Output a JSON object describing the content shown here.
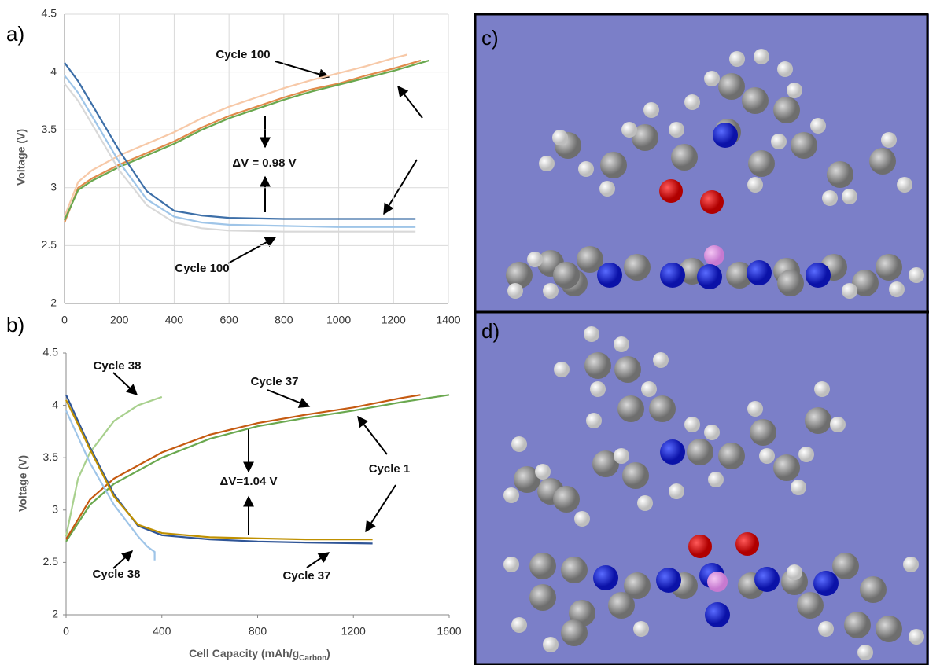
{
  "chart_data": [
    {
      "type": "line",
      "panel_label": "a)",
      "y_label": "Voltage (V)",
      "xlim": [
        0,
        1400
      ],
      "xticks": [
        0,
        200,
        400,
        600,
        800,
        1000,
        1200,
        1400
      ],
      "ylim": [
        2,
        4.5
      ],
      "yticks": [
        2,
        2.5,
        3,
        3.5,
        4,
        4.5
      ],
      "grid": true,
      "series": [
        {
          "color": "#f7c9a8",
          "x": [
            0,
            50,
            100,
            200,
            300,
            400,
            500,
            600,
            700,
            800,
            900,
            1000,
            1100,
            1200,
            1250
          ],
          "values": [
            2.75,
            3.05,
            3.15,
            3.28,
            3.38,
            3.48,
            3.6,
            3.7,
            3.78,
            3.86,
            3.93,
            3.99,
            4.05,
            4.12,
            4.15
          ]
        },
        {
          "color": "#e08a4a",
          "x": [
            0,
            50,
            100,
            200,
            300,
            400,
            500,
            600,
            700,
            800,
            900,
            1000,
            1100,
            1200,
            1300
          ],
          "values": [
            2.7,
            3.0,
            3.08,
            3.2,
            3.3,
            3.4,
            3.52,
            3.62,
            3.7,
            3.78,
            3.85,
            3.9,
            3.97,
            4.03,
            4.1
          ]
        },
        {
          "color": "#6aa84f",
          "x": [
            0,
            50,
            100,
            200,
            300,
            400,
            500,
            600,
            700,
            800,
            900,
            1000,
            1100,
            1200,
            1330
          ],
          "values": [
            2.72,
            2.98,
            3.06,
            3.18,
            3.28,
            3.38,
            3.5,
            3.6,
            3.68,
            3.76,
            3.83,
            3.89,
            3.95,
            4.01,
            4.1
          ]
        },
        {
          "color": "#d9d9d9",
          "x": [
            0,
            50,
            100,
            200,
            300,
            400,
            500,
            600,
            800,
            1000,
            1280
          ],
          "values": [
            3.9,
            3.75,
            3.55,
            3.15,
            2.85,
            2.7,
            2.65,
            2.63,
            2.62,
            2.62,
            2.62
          ]
        },
        {
          "color": "#9fc5e8",
          "x": [
            0,
            50,
            100,
            200,
            300,
            400,
            500,
            600,
            800,
            1000,
            1280
          ],
          "values": [
            3.97,
            3.82,
            3.62,
            3.22,
            2.9,
            2.75,
            2.7,
            2.68,
            2.67,
            2.66,
            2.66
          ]
        },
        {
          "color": "#3d6fa8",
          "x": [
            0,
            50,
            100,
            200,
            300,
            400,
            500,
            600,
            800,
            1000,
            1280
          ],
          "values": [
            4.08,
            3.92,
            3.72,
            3.32,
            2.97,
            2.8,
            2.76,
            2.74,
            2.73,
            2.73,
            2.73
          ]
        }
      ],
      "annotations": [
        {
          "text": "Cycle 100"
        },
        {
          "text": "ΔV = 0.98 V"
        },
        {
          "text": "Cycle 100"
        }
      ]
    },
    {
      "type": "line",
      "panel_label": "b)",
      "y_label": "Voltage (V)",
      "x_label": "Cell Capacity (mAh/g",
      "x_label_sub": "Carbon",
      "x_label_end": ")",
      "xlim": [
        0,
        1600
      ],
      "xticks": [
        0,
        400,
        800,
        1200,
        1600
      ],
      "ylim": [
        2,
        4.5
      ],
      "yticks": [
        2,
        2.5,
        3,
        3.5,
        4,
        4.5
      ],
      "grid": false,
      "series": [
        {
          "color": "#a8d08d",
          "x": [
            0,
            50,
            100,
            200,
            300,
            400
          ],
          "values": [
            2.75,
            3.3,
            3.55,
            3.85,
            4.0,
            4.08
          ]
        },
        {
          "color": "#6aa84f",
          "x": [
            0,
            100,
            200,
            400,
            600,
            800,
            1000,
            1200,
            1400,
            1600
          ],
          "values": [
            2.7,
            3.05,
            3.25,
            3.5,
            3.68,
            3.8,
            3.88,
            3.95,
            4.03,
            4.1
          ]
        },
        {
          "color": "#c55a11",
          "x": [
            0,
            100,
            200,
            400,
            600,
            800,
            1000,
            1200,
            1400,
            1480
          ],
          "values": [
            2.72,
            3.1,
            3.3,
            3.55,
            3.72,
            3.83,
            3.91,
            3.98,
            4.07,
            4.1
          ]
        },
        {
          "color": "#9fc5e8",
          "x": [
            0,
            50,
            100,
            200,
            300,
            340,
            370,
            370
          ],
          "values": [
            3.95,
            3.7,
            3.45,
            3.05,
            2.75,
            2.65,
            2.6,
            2.52
          ]
        },
        {
          "color": "#2f5597",
          "x": [
            0,
            50,
            100,
            200,
            300,
            400,
            600,
            800,
            1000,
            1280
          ],
          "values": [
            4.1,
            3.85,
            3.6,
            3.15,
            2.85,
            2.76,
            2.72,
            2.7,
            2.69,
            2.68
          ]
        },
        {
          "color": "#bf9000",
          "x": [
            0,
            50,
            100,
            200,
            300,
            400,
            600,
            800,
            1000,
            1280
          ],
          "values": [
            4.05,
            3.82,
            3.58,
            3.13,
            2.86,
            2.78,
            2.74,
            2.73,
            2.72,
            2.72
          ]
        }
      ],
      "annotations": [
        {
          "text": "Cycle 38"
        },
        {
          "text": "Cycle 37"
        },
        {
          "text": "Cycle 1"
        },
        {
          "text": "ΔV=1.04 V"
        },
        {
          "text": "Cycle 38"
        },
        {
          "text": "Cycle 37"
        }
      ]
    }
  ],
  "images": [
    {
      "label": "c)"
    },
    {
      "label": "d)"
    }
  ]
}
